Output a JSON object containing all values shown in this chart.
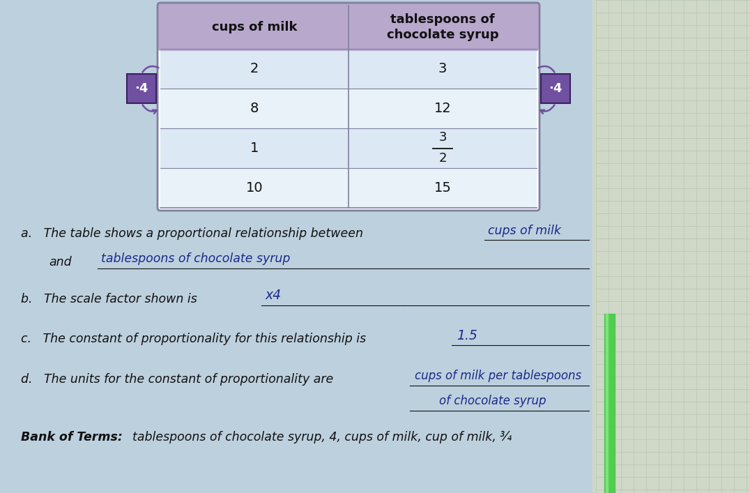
{
  "bg_color": "#bdd0de",
  "page_color": "#c8dae8",
  "table_header_color": "#b8a8cc",
  "table_row_even": "#dce8f4",
  "table_row_odd": "#e8f2f8",
  "table_border_color": "#8080a0",
  "header_col1": "cups of milk",
  "header_col2": "tablespoons of\nchocolate syrup",
  "rows": [
    [
      "2",
      "3"
    ],
    [
      "8",
      "12"
    ],
    [
      "1",
      "3/2"
    ],
    [
      "10",
      "15"
    ]
  ],
  "scale_label": "·4",
  "scale_bg_color": "#7050a0",
  "scale_border_color": "#3a2060",
  "text_color": "#111111",
  "handwriting_color": "#1a2a8a",
  "q_fontsize": 12.5,
  "ans_fontsize": 12.5,
  "bank_terms_3_2": "¾"
}
